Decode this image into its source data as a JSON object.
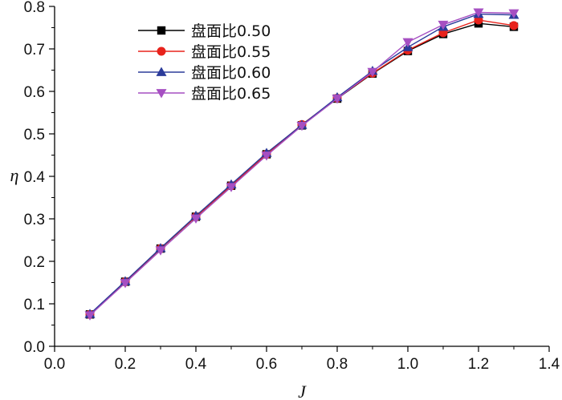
{
  "chart_data": {
    "type": "line",
    "title": "",
    "xlabel": "J",
    "ylabel": "η",
    "xlim": [
      0.0,
      1.4
    ],
    "ylim": [
      0.0,
      0.8
    ],
    "xticks": [
      "0.0",
      "0.2",
      "0.4",
      "0.6",
      "0.8",
      "1.0",
      "1.2",
      "1.4"
    ],
    "yticks": [
      "0.0",
      "0.1",
      "0.2",
      "0.3",
      "0.4",
      "0.5",
      "0.6",
      "0.7",
      "0.8"
    ],
    "grid": false,
    "legend_position": "top-left",
    "x": [
      0.1,
      0.2,
      0.3,
      0.4,
      0.5,
      0.6,
      0.7,
      0.8,
      0.9,
      1.0,
      1.1,
      1.2,
      1.3
    ],
    "series": [
      {
        "name": "盘面比0.50",
        "color": "#000000",
        "marker": "square",
        "values": [
          0.075,
          0.152,
          0.23,
          0.305,
          0.378,
          0.452,
          0.52,
          0.583,
          0.642,
          0.695,
          0.735,
          0.76,
          0.752
        ]
      },
      {
        "name": "盘面比0.55",
        "color": "#e8231c",
        "marker": "circle",
        "values": [
          0.075,
          0.152,
          0.23,
          0.305,
          0.378,
          0.452,
          0.522,
          0.584,
          0.643,
          0.697,
          0.738,
          0.768,
          0.755
        ]
      },
      {
        "name": "盘面比0.60",
        "color": "#2b3b9a",
        "marker": "triangle-up",
        "values": [
          0.076,
          0.153,
          0.231,
          0.307,
          0.381,
          0.455,
          0.521,
          0.586,
          0.648,
          0.704,
          0.752,
          0.782,
          0.78
        ]
      },
      {
        "name": "盘面比0.65",
        "color": "#a64fc2",
        "marker": "triangle-down",
        "values": [
          0.073,
          0.149,
          0.226,
          0.301,
          0.375,
          0.449,
          0.519,
          0.583,
          0.646,
          0.716,
          0.757,
          0.786,
          0.784
        ]
      }
    ]
  }
}
